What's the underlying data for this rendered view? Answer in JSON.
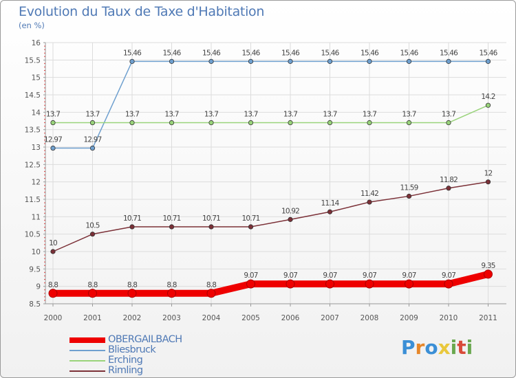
{
  "title": "Evolution du Taux de Taxe d'Habitation",
  "unit": "(en %)",
  "brand": {
    "text": "Proxiti",
    "letter_colors": [
      "#3b8fd6",
      "#e6872a",
      "#3b8fd6",
      "#e9c83c",
      "#6aa84f",
      "#d94b3a",
      "#6aa84f"
    ]
  },
  "chart_data": {
    "type": "line",
    "categories": [
      "2000",
      "2001",
      "2002",
      "2003",
      "2004",
      "2005",
      "2006",
      "2007",
      "2008",
      "2009",
      "2010",
      "2011"
    ],
    "ylim": [
      8.5,
      16
    ],
    "yticks": [
      "8.5",
      "9",
      "9.5",
      "10",
      "10.5",
      "11",
      "11.5",
      "12",
      "12.5",
      "13",
      "13.5",
      "14",
      "14.5",
      "15",
      "15.5",
      "16"
    ],
    "grid": true,
    "legend_position": "bottom-left",
    "series": [
      {
        "name": "OBERGAILBACH",
        "color": "#ee0000",
        "values": [
          8.8,
          8.8,
          8.8,
          8.8,
          8.8,
          9.07,
          9.07,
          9.07,
          9.07,
          9.07,
          9.07,
          9.35
        ],
        "labels": [
          "8.8",
          "8.8",
          "8.8",
          "8.8",
          "8.8",
          "9.07",
          "9.07",
          "9.07",
          "9.07",
          "9.07",
          "9.07",
          "9.35"
        ]
      },
      {
        "name": "Bliesbruck",
        "color": "#6fa0cf",
        "values": [
          12.97,
          12.97,
          15.46,
          15.46,
          15.46,
          15.46,
          15.46,
          15.46,
          15.46,
          15.46,
          15.46,
          15.46
        ],
        "labels": [
          "12.97",
          "12.97",
          "15.46",
          "15.46",
          "15.46",
          "15.46",
          "15.46",
          "15.46",
          "15.46",
          "15.46",
          "15.46",
          "15.46"
        ]
      },
      {
        "name": "Erching",
        "color": "#99d37a",
        "values": [
          13.7,
          13.7,
          13.7,
          13.7,
          13.7,
          13.7,
          13.7,
          13.7,
          13.7,
          13.7,
          13.7,
          14.2
        ],
        "labels": [
          "13.7",
          "13.7",
          "13.7",
          "13.7",
          "13.7",
          "13.7",
          "13.7",
          "13.7",
          "13.7",
          "13.7",
          "13.7",
          "14.2"
        ]
      },
      {
        "name": "Rimling",
        "color": "#7b3037",
        "values": [
          10,
          10.5,
          10.71,
          10.71,
          10.71,
          10.71,
          10.92,
          11.14,
          11.42,
          11.59,
          11.82,
          12
        ],
        "labels": [
          "10",
          "10.5",
          "10.71",
          "10.71",
          "10.71",
          "10.71",
          "10.92",
          "11.14",
          "11.42",
          "11.59",
          "11.82",
          "12"
        ]
      }
    ]
  }
}
